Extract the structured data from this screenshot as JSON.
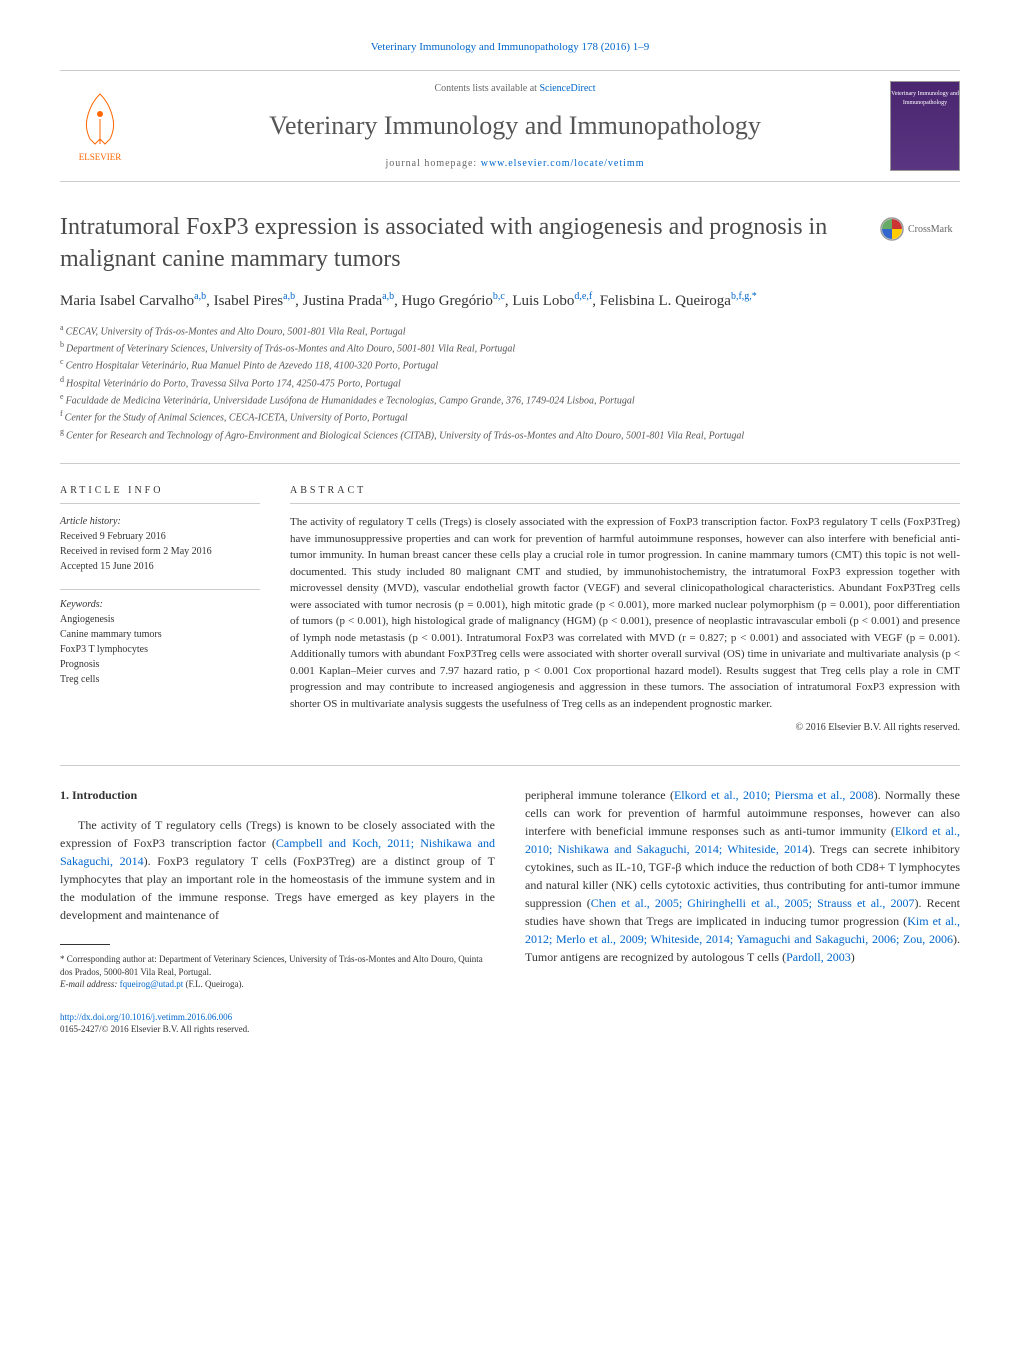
{
  "header": {
    "reference": "Veterinary Immunology and Immunopathology 178 (2016) 1–9",
    "contents_prefix": "Contents lists available at ",
    "contents_link": "ScienceDirect",
    "journal_name": "Veterinary Immunology and Immunopathology",
    "homepage_prefix": "journal homepage: ",
    "homepage_link": "www.elsevier.com/locate/vetimm",
    "publisher": "ELSEVIER",
    "cover_text": "Veterinary Immunology and Immunopathology"
  },
  "article": {
    "title": "Intratumoral FoxP3 expression is associated with angiogenesis and prognosis in malignant canine mammary tumors",
    "crossmark_label": "CrossMark",
    "authors_html": "Maria Isabel Carvalho",
    "authors": [
      {
        "name": "Maria Isabel Carvalho",
        "sup": "a,b"
      },
      {
        "name": "Isabel Pires",
        "sup": "a,b"
      },
      {
        "name": "Justina Prada",
        "sup": "a,b"
      },
      {
        "name": "Hugo Gregório",
        "sup": "b,c"
      },
      {
        "name": "Luis Lobo",
        "sup": "d,e,f"
      },
      {
        "name": "Felisbina L. Queiroga",
        "sup": "b,f,g,*"
      }
    ],
    "affiliations": [
      {
        "sup": "a",
        "text": "CECAV, University of Trás-os-Montes and Alto Douro, 5001-801 Vila Real, Portugal"
      },
      {
        "sup": "b",
        "text": "Department of Veterinary Sciences, University of Trás-os-Montes and Alto Douro, 5001-801 Vila Real, Portugal"
      },
      {
        "sup": "c",
        "text": "Centro Hospitalar Veterinário, Rua Manuel Pinto de Azevedo 118, 4100-320 Porto, Portugal"
      },
      {
        "sup": "d",
        "text": "Hospital Veterinário do Porto, Travessa Silva Porto 174, 4250-475 Porto, Portugal"
      },
      {
        "sup": "e",
        "text": "Faculdade de Medicina Veterinária, Universidade Lusófona de Humanidades e Tecnologias, Campo Grande, 376, 1749-024 Lisboa, Portugal"
      },
      {
        "sup": "f",
        "text": "Center for the Study of Animal Sciences, CECA-ICETA, University of Porto, Portugal"
      },
      {
        "sup": "g",
        "text": "Center for Research and Technology of Agro-Environment and Biological Sciences (CITAB), University of Trás-os-Montes and Alto Douro, 5001-801 Vila Real, Portugal"
      }
    ]
  },
  "info": {
    "heading": "ARTICLE INFO",
    "history_label": "Article history:",
    "history": [
      "Received 9 February 2016",
      "Received in revised form 2 May 2016",
      "Accepted 15 June 2016"
    ],
    "keywords_label": "Keywords:",
    "keywords": [
      "Angiogenesis",
      "Canine mammary tumors",
      "FoxP3 T lymphocytes",
      "Prognosis",
      "Treg cells"
    ]
  },
  "abstract": {
    "heading": "ABSTRACT",
    "text": "The activity of regulatory T cells (Tregs) is closely associated with the expression of FoxP3 transcription factor. FoxP3 regulatory T cells (FoxP3Treg) have immunosuppressive properties and can work for prevention of harmful autoimmune responses, however can also interfere with beneficial anti-tumor immunity. In human breast cancer these cells play a crucial role in tumor progression. In canine mammary tumors (CMT) this topic is not well-documented. This study included 80 malignant CMT and studied, by immunohistochemistry, the intratumoral FoxP3 expression together with microvessel density (MVD), vascular endothelial growth factor (VEGF) and several clinicopathological characteristics. Abundant FoxP3Treg cells were associated with tumor necrosis (p = 0.001), high mitotic grade (p < 0.001), more marked nuclear polymorphism (p = 0.001), poor differentiation of tumors (p < 0.001), high histological grade of malignancy (HGM) (p < 0.001), presence of neoplastic intravascular emboli (p < 0.001) and presence of lymph node metastasis (p < 0.001). Intratumoral FoxP3 was correlated with MVD (r = 0.827; p < 0.001) and associated with VEGF (p = 0.001). Additionally tumors with abundant FoxP3Treg cells were associated with shorter overall survival (OS) time in univariate and multivariate analysis (p < 0.001 Kaplan–Meier curves and 7.97 hazard ratio, p < 0.001 Cox proportional hazard model). Results suggest that Treg cells play a role in CMT progression and may contribute to increased angiogenesis and aggression in these tumors. The association of intratumoral FoxP3 expression with shorter OS in multivariate analysis suggests the usefulness of Treg cells as an independent prognostic marker.",
    "copyright": "© 2016 Elsevier B.V. All rights reserved."
  },
  "body": {
    "section_heading": "1. Introduction",
    "col1": "The activity of T regulatory cells (Tregs) is known to be closely associated with the expression of FoxP3 transcription factor (",
    "col1_ref1": "Campbell and Koch, 2011; Nishikawa and Sakaguchi, 2014",
    "col1_cont": "). FoxP3 regulatory T cells (FoxP3Treg) are a distinct group of T lymphocytes that play an important role in the homeostasis of the immune system and in the modulation of the immune response. Tregs have emerged as key players in the development and maintenance of",
    "col2_a": "peripheral immune tolerance (",
    "col2_ref1": "Elkord et al., 2010; Piersma et al., 2008",
    "col2_b": "). Normally these cells can work for prevention of harmful autoimmune responses, however can also interfere with beneficial immune responses such as anti-tumor immunity (",
    "col2_ref2": "Elkord et al., 2010; Nishikawa and Sakaguchi, 2014; Whiteside, 2014",
    "col2_c": "). Tregs can secrete inhibitory cytokines, such as IL-10, TGF-β which induce the reduction of both CD8+ T lymphocytes and natural killer (NK) cells cytotoxic activities, thus contributing for anti-tumor immune suppression (",
    "col2_ref3": "Chen et al., 2005; Ghiringhelli et al., 2005; Strauss et al., 2007",
    "col2_d": "). Recent studies have shown that Tregs are implicated in inducing tumor progression (",
    "col2_ref4": "Kim et al., 2012; Merlo et al., 2009; Whiteside, 2014; Yamaguchi and Sakaguchi, 2006; Zou, 2006",
    "col2_e": "). Tumor antigens are recognized by autologous T cells (",
    "col2_ref5": "Pardoll, 2003",
    "col2_f": ")"
  },
  "footnote": {
    "corresponding": "* Corresponding author at: Department of Veterinary Sciences, University of Trás-os-Montes and Alto Douro, Quinta dos Prados, 5000-801 Vila Real, Portugal.",
    "email_label": "E-mail address: ",
    "email": "fqueirog@utad.pt",
    "email_suffix": " (F.L. Queiroga)."
  },
  "bottom": {
    "doi": "http://dx.doi.org/10.1016/j.vetimm.2016.06.006",
    "issn_copyright": "0165-2427/© 2016 Elsevier B.V. All rights reserved."
  },
  "colors": {
    "link": "#0066cc",
    "text": "#333333",
    "elsevier_orange": "#ff6600",
    "cover_purple": "#4a2570"
  }
}
